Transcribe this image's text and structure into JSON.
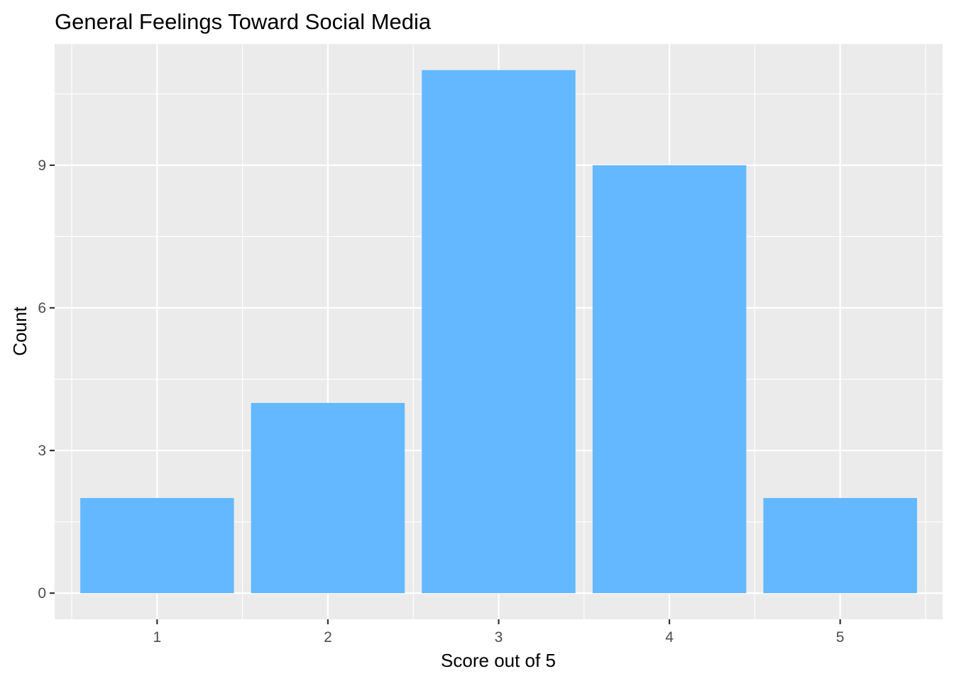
{
  "chart_data": {
    "type": "bar",
    "title": "General Feelings Toward Social Media",
    "xlabel": "Score out of 5",
    "ylabel": "Count",
    "categories": [
      "1",
      "2",
      "3",
      "4",
      "5"
    ],
    "values": [
      2,
      4,
      11,
      9,
      2
    ],
    "ylim": [
      -0.55,
      11.55
    ],
    "yticks": [
      0,
      3,
      6,
      9
    ],
    "grid": true,
    "legend": "none",
    "colors": {
      "bar": "#63B8FF",
      "panel": "#EBEBEB",
      "grid": "#FFFFFF",
      "tick": "#333333"
    }
  }
}
